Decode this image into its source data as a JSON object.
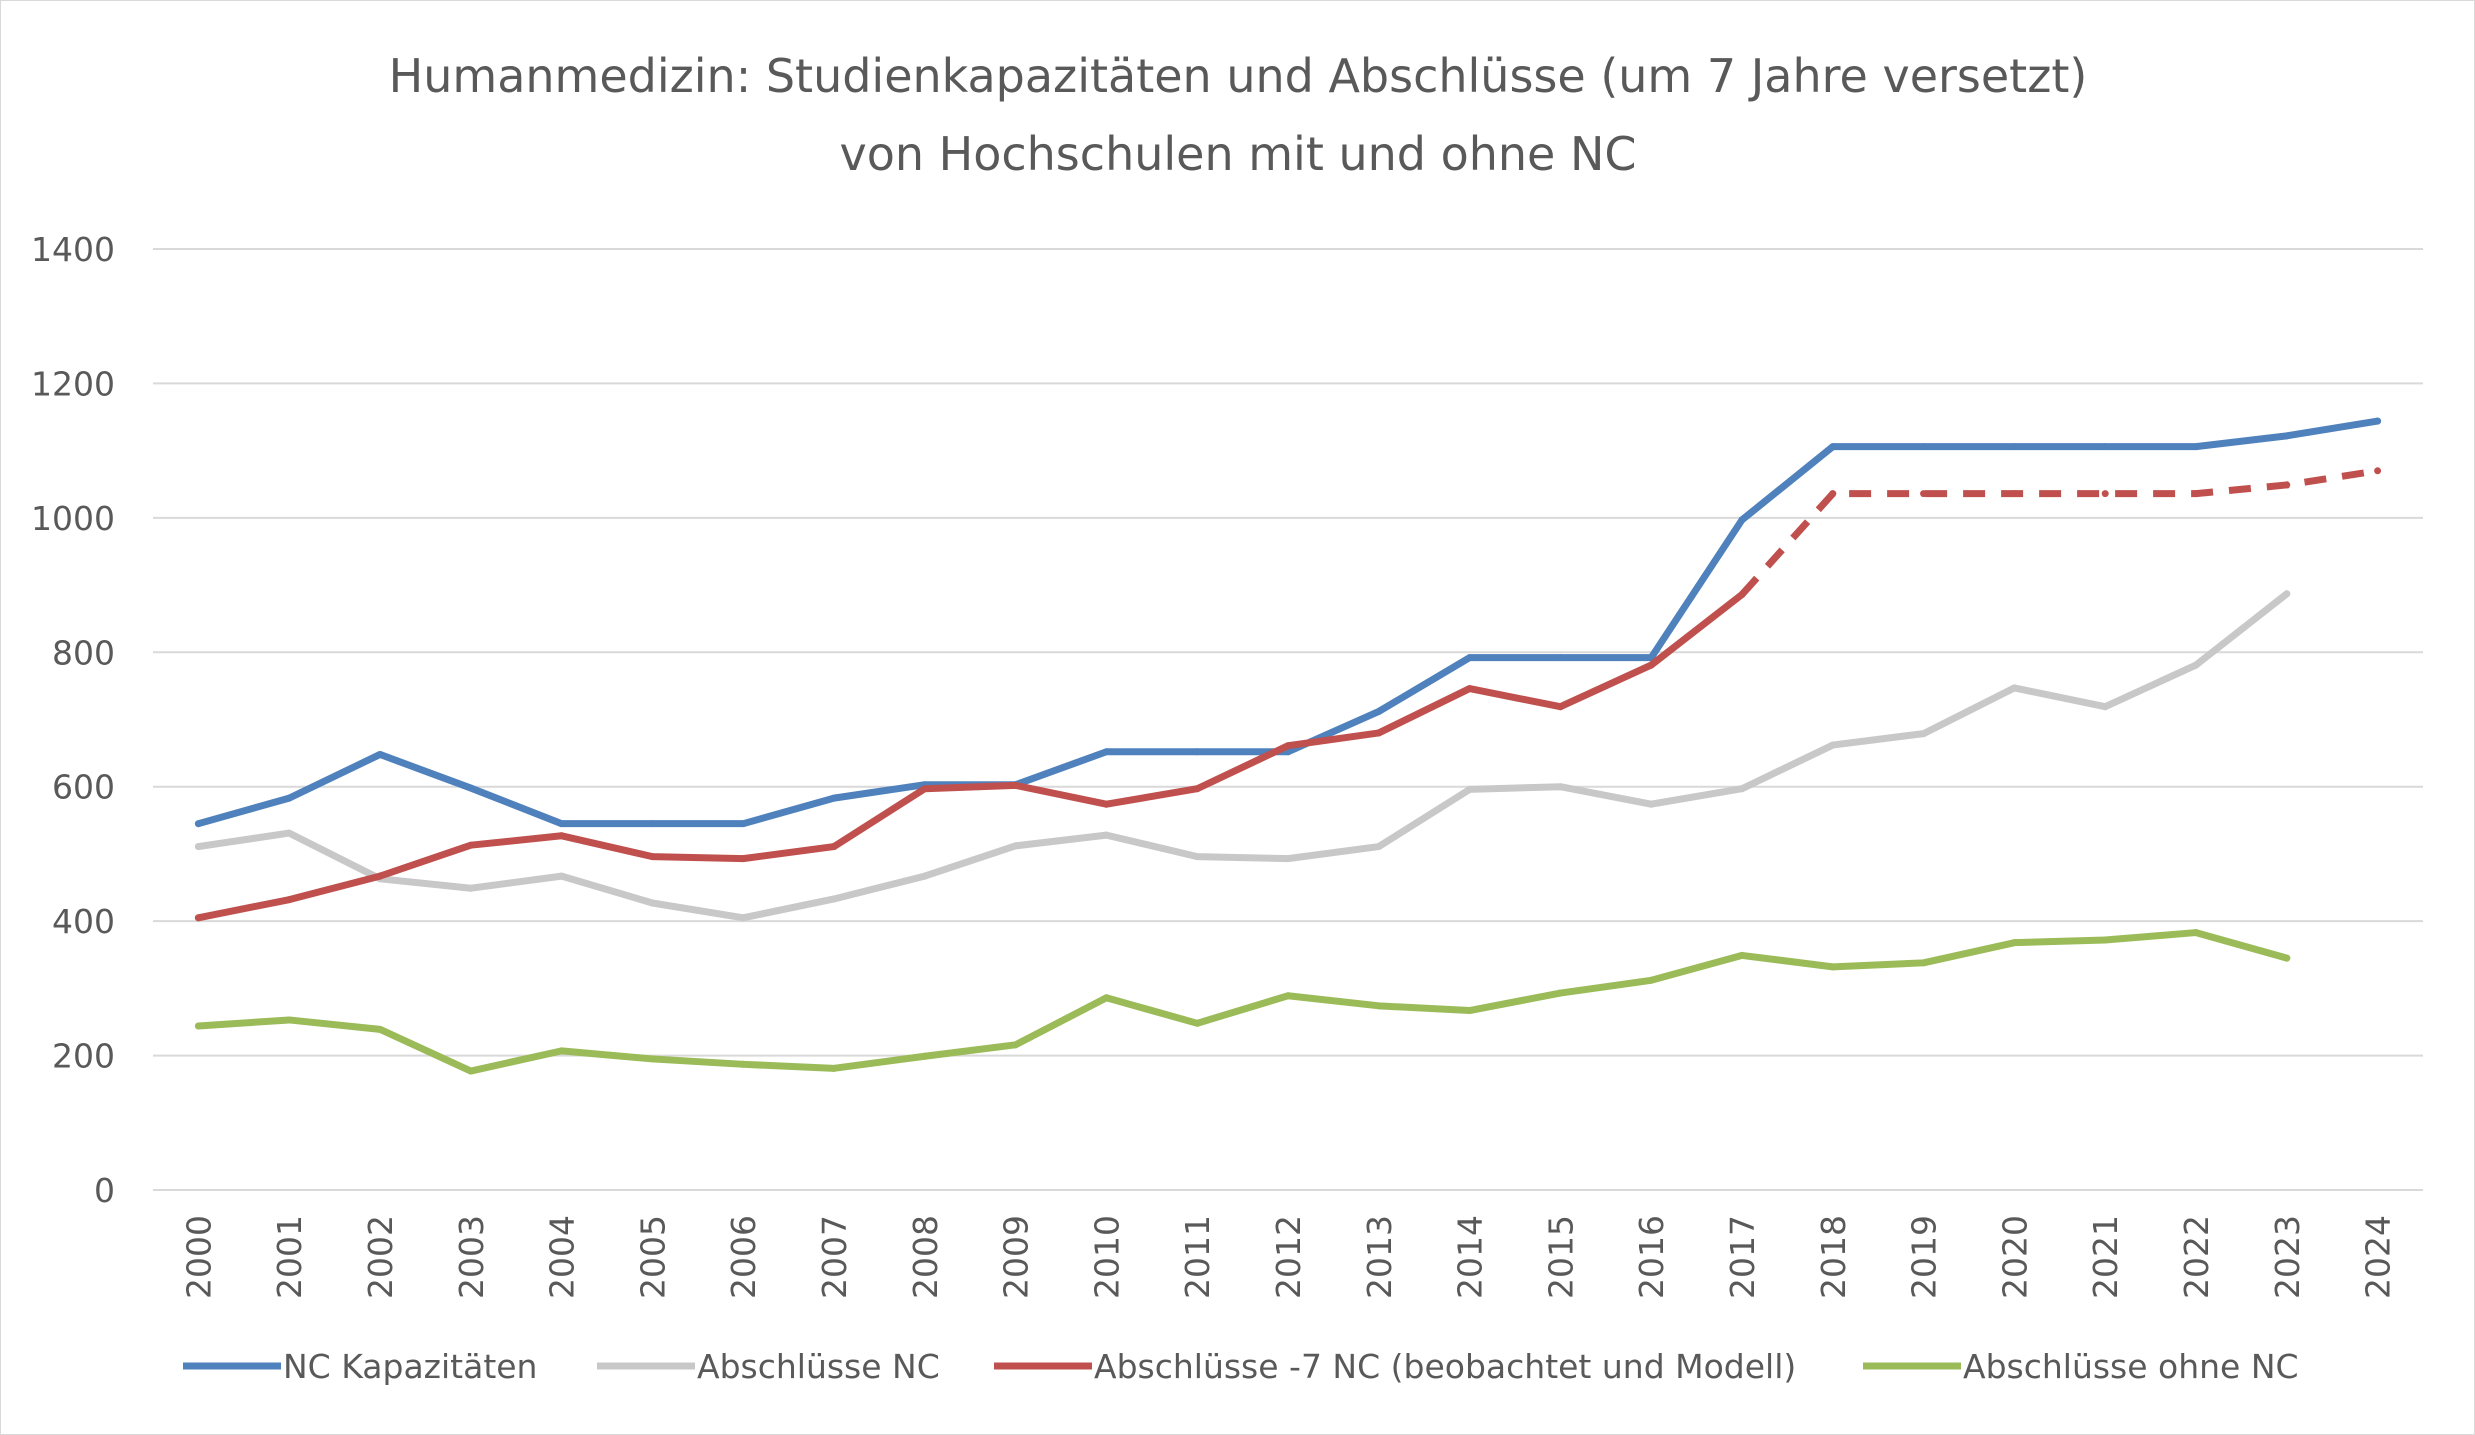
{
  "chart_data": {
    "type": "line",
    "title": "Humanmedizin: Studienkapazitäten und Abschlüsse (um 7 Jahre versetzt)",
    "subtitle": "von Hochschulen mit und ohne NC",
    "xlabel": "",
    "ylabel": "",
    "ylim": [
      0,
      1400
    ],
    "yticks": [
      "0",
      "200",
      "400",
      "600",
      "800",
      "1000",
      "1200",
      "1400"
    ],
    "grid": true,
    "legend_position": "bottom",
    "categories": [
      "2000",
      "2001",
      "2002",
      "2003",
      "2004",
      "2005",
      "2006",
      "2007",
      "2008",
      "2009",
      "2010",
      "2011",
      "2012",
      "2013",
      "2014",
      "2015",
      "2016",
      "2017",
      "2018",
      "2019",
      "2020",
      "2021",
      "2022",
      "2023",
      "2024"
    ],
    "series": [
      {
        "name": "NC Kapazitäten",
        "color": "#4f81bd",
        "values": [
          545,
          583,
          648,
          598,
          545,
          545,
          545,
          583,
          603,
          603,
          652,
          652,
          652,
          712,
          792,
          792,
          792,
          997,
          1106,
          1106,
          1106,
          1106,
          1106,
          1122,
          1144
        ]
      },
      {
        "name": "Abschlüsse NC",
        "color": "#c8c8c8",
        "values": [
          511,
          531,
          463,
          449,
          467,
          427,
          405,
          433,
          467,
          512,
          528,
          496,
          493,
          511,
          596,
          600,
          574,
          597,
          662,
          679,
          747,
          719,
          781,
          887,
          null
        ]
      },
      {
        "name": "Abschlüsse -7 NC (beobachtet und Modell)",
        "color": "#c0504d",
        "values": [
          405,
          432,
          467,
          513,
          527,
          496,
          493,
          511,
          597,
          602,
          574,
          597,
          661,
          680,
          746,
          719,
          781,
          886,
          1036,
          1036,
          1036,
          1036,
          1036,
          1049,
          1070
        ],
        "dashed_from": "2017"
      },
      {
        "name": "Abschlüsse ohne NC",
        "color": "#9bbb59",
        "values": [
          244,
          253,
          239,
          177,
          207,
          195,
          187,
          181,
          199,
          216,
          286,
          248,
          289,
          274,
          267,
          293,
          312,
          349,
          332,
          338,
          368,
          372,
          383,
          345,
          null
        ]
      }
    ]
  }
}
